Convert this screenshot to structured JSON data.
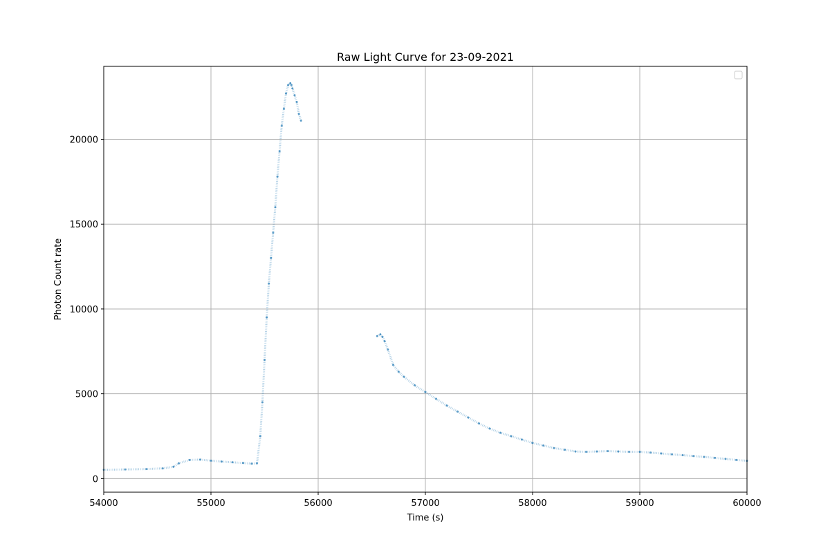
{
  "chart_data": {
    "type": "scatter",
    "title": "Raw Light Curve for 23-09-2021",
    "xlabel": "Time (s)",
    "ylabel": "Photon Count rate",
    "xlim": [
      54000,
      60000
    ],
    "ylim": [
      -800,
      24300
    ],
    "xticks": [
      54000,
      55000,
      56000,
      57000,
      58000,
      59000,
      60000
    ],
    "yticks": [
      0,
      5000,
      10000,
      15000,
      20000
    ],
    "grid": true,
    "legend": "top-right (empty)",
    "marker_color": "#1f77b4",
    "series": [
      {
        "segments": [
          {
            "x": [
              54000,
              54200,
              54400,
              54550,
              54650,
              54700,
              54800,
              54900,
              55000,
              55100,
              55200,
              55300,
              55380,
              55430,
              55460,
              55480,
              55500,
              55520,
              55540,
              55560,
              55580,
              55600,
              55620,
              55640,
              55660,
              55680,
              55700,
              55720,
              55740,
              55750,
              55760,
              55780,
              55800,
              55820,
              55840
            ],
            "y": [
              520,
              540,
              560,
              600,
              700,
              900,
              1100,
              1120,
              1060,
              1000,
              960,
              920,
              880,
              900,
              2500,
              4500,
              7000,
              9500,
              11500,
              13000,
              14500,
              16000,
              17800,
              19300,
              20800,
              21800,
              22700,
              23200,
              23300,
              23200,
              23000,
              22600,
              22200,
              21500,
              21100
            ]
          },
          {
            "x": [
              56550,
              56580,
              56600,
              56620,
              56650,
              56700,
              56750,
              56800,
              56900,
              57000,
              57100,
              57200,
              57300,
              57400,
              57500,
              57600,
              57700,
              57800,
              57900,
              58000,
              58100,
              58200,
              58300,
              58400,
              58500,
              58600,
              58700,
              58800,
              58900,
              59000,
              59100,
              59200,
              59300,
              59400,
              59500,
              59600,
              59700,
              59800,
              59900,
              60000
            ],
            "y": [
              8400,
              8500,
              8350,
              8100,
              7600,
              6700,
              6300,
              6000,
              5500,
              5100,
              4700,
              4300,
              3950,
              3600,
              3250,
              2950,
              2700,
              2500,
              2300,
              2100,
              1950,
              1800,
              1700,
              1600,
              1580,
              1600,
              1620,
              1600,
              1580,
              1580,
              1530,
              1480,
              1430,
              1380,
              1330,
              1280,
              1220,
              1160,
              1100,
              1050
            ]
          }
        ]
      }
    ]
  }
}
